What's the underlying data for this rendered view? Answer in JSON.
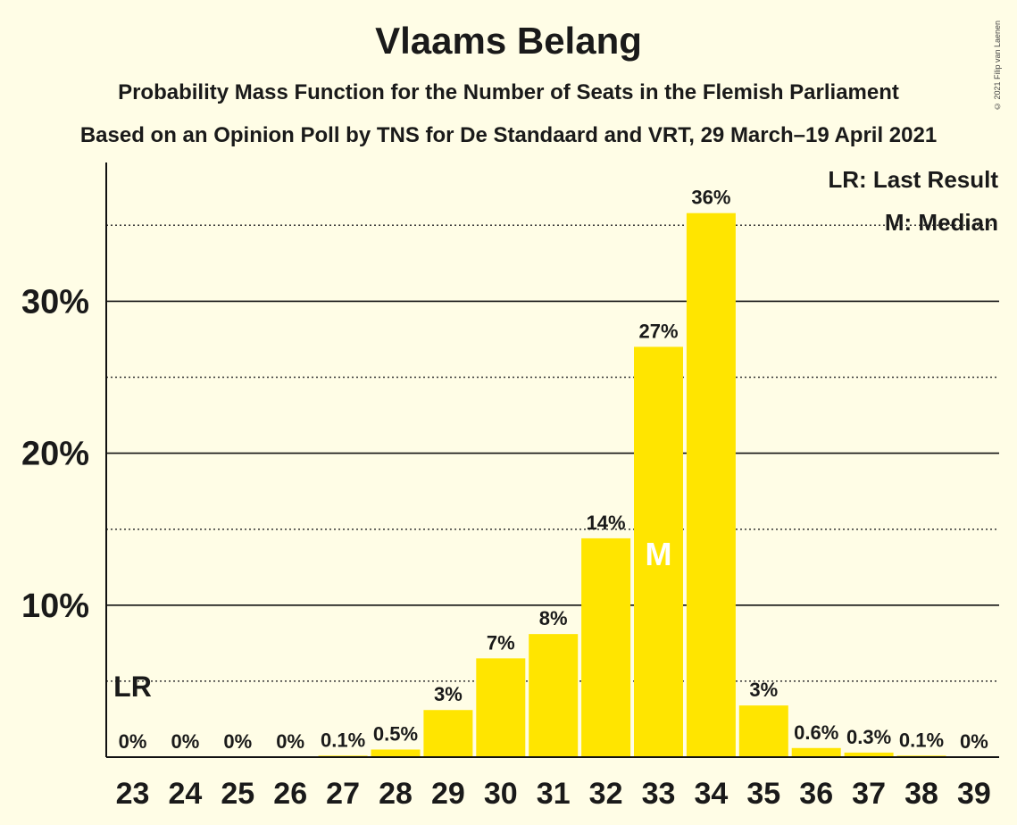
{
  "title": "Vlaams Belang",
  "subtitle": "Probability Mass Function for the Number of Seats in the Flemish Parliament",
  "subtitle2": "Based on an Opinion Poll by TNS for De Standaard and VRT, 29 March–19 April 2021",
  "copyright": "© 2021 Filip van Laenen",
  "legend": {
    "last_result": "LR: Last Result",
    "median": "M: Median"
  },
  "colors": {
    "bar": "#FFE500",
    "background": "#FFFDE6",
    "axis": "#222222"
  },
  "chart_data": {
    "type": "bar",
    "categories": [
      "23",
      "24",
      "25",
      "26",
      "27",
      "28",
      "29",
      "30",
      "31",
      "32",
      "33",
      "34",
      "35",
      "36",
      "37",
      "38",
      "39"
    ],
    "values": [
      0,
      0,
      0,
      0,
      0.1,
      0.5,
      3.1,
      6.5,
      8.1,
      14.4,
      27.0,
      35.8,
      3.4,
      0.6,
      0.3,
      0.1,
      0
    ],
    "value_labels": [
      "0%",
      "0%",
      "0%",
      "0%",
      "0.1%",
      "0.5%",
      "3%",
      "7%",
      "8%",
      "14%",
      "27%",
      "36%",
      "3%",
      "0.6%",
      "0.3%",
      "0.1%",
      "0%"
    ],
    "ylim": [
      0,
      39
    ],
    "yticks": [
      10,
      20,
      30
    ],
    "ytick_labels": [
      "10%",
      "20%",
      "30%"
    ],
    "minor_gridlines": [
      5,
      15,
      25,
      35
    ],
    "last_result": {
      "seat": "23",
      "label": "LR"
    },
    "median": {
      "seat": "33",
      "label": "M"
    },
    "legend_position": "top-right"
  }
}
